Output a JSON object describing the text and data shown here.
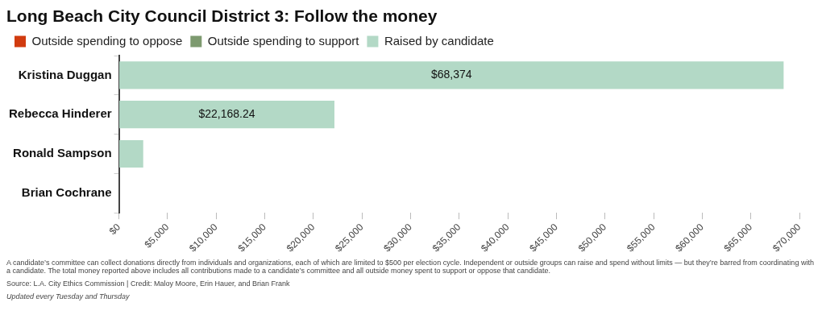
{
  "chart_data": {
    "type": "bar",
    "orientation": "horizontal",
    "stacked": true,
    "title": "Long Beach City Council District 3: Follow the money",
    "categories": [
      "Kristina Duggan",
      "Rebecca Hinderer",
      "Ronald Sampson",
      "Brian Cochrane"
    ],
    "series": [
      {
        "name": "Outside spending to oppose",
        "color": "#d13b0f",
        "values": [
          0,
          0,
          0,
          0
        ]
      },
      {
        "name": "Outside spending to support",
        "color": "#7d9a6f",
        "values": [
          0,
          0,
          0,
          0
        ]
      },
      {
        "name": "Raised by candidate",
        "color": "#b3d9c6",
        "values": [
          68374,
          22168.24,
          2500,
          0
        ],
        "value_labels": [
          "$68,374",
          "$22,168.24",
          null,
          null
        ]
      }
    ],
    "xlim": [
      0,
      70000
    ],
    "xticks": [
      {
        "value": 0,
        "label": "$0"
      },
      {
        "value": 5000,
        "label": "$5,000"
      },
      {
        "value": 10000,
        "label": "$10,000"
      },
      {
        "value": 15000,
        "label": "$15,000"
      },
      {
        "value": 20000,
        "label": "$20,000"
      },
      {
        "value": 25000,
        "label": "$25,000"
      },
      {
        "value": 30000,
        "label": "$30,000"
      },
      {
        "value": 35000,
        "label": "$35,000"
      },
      {
        "value": 40000,
        "label": "$40,000"
      },
      {
        "value": 45000,
        "label": "$45,000"
      },
      {
        "value": 50000,
        "label": "$50,000"
      },
      {
        "value": 55000,
        "label": "$55,000"
      },
      {
        "value": 60000,
        "label": "$60,000"
      },
      {
        "value": 65000,
        "label": "$65,000"
      },
      {
        "value": 70000,
        "label": "$70,000"
      }
    ],
    "grid": false,
    "legend": "top left",
    "annotations": [
      "A candidate’s committee can collect donations directly from individuals and organizations, each of which are limited to $500 per election cycle. Independent or outside groups can raise and spend without limits — but they’re barred from coordinating with a candidate. The total money reported above includes all contributions made to a candidate’s committee and all outside money spent to support or oppose that candidate.",
      "Source: L.A. City Ethics Commission | Credit: Maloy Moore, Erin Hauer, and Brian Frank",
      "Updated every Tuesday and Thursday"
    ]
  }
}
